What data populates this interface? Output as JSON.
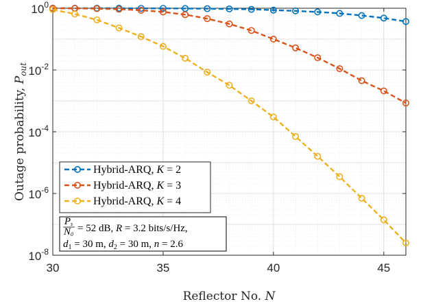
{
  "chart_data": {
    "type": "line",
    "xlabel": "Reflector No. N",
    "ylabel": "Outage probability, P_out",
    "x": [
      30,
      31,
      32,
      33,
      34,
      35,
      36,
      37,
      38,
      39,
      40,
      41,
      42,
      43,
      44,
      45,
      46
    ],
    "xlim": [
      30,
      46
    ],
    "ylim": [
      1e-08,
      1
    ],
    "yscale": "log",
    "xticks": [
      "30",
      "35",
      "40",
      "45"
    ],
    "yticks": [
      "10^0",
      "10^-2",
      "10^-4",
      "10^-6",
      "10^-8"
    ],
    "grid": true,
    "series": [
      {
        "name": "Hybrid-ARQ, K = 2",
        "color": "#0072BD",
        "values": [
          1.0,
          1.0,
          1.0,
          1.0,
          0.99,
          0.99,
          0.98,
          0.97,
          0.95,
          0.92,
          0.87,
          0.82,
          0.76,
          0.68,
          0.58,
          0.48,
          0.37
        ]
      },
      {
        "name": "Hybrid-ARQ, K = 3",
        "color": "#D95319",
        "values": [
          1.0,
          0.99,
          0.97,
          0.93,
          0.86,
          0.76,
          0.62,
          0.46,
          0.31,
          0.19,
          0.1,
          0.052,
          0.025,
          0.011,
          0.0045,
          0.0021,
          0.00085
        ]
      },
      {
        "name": "Hybrid-ARQ, K = 4",
        "color": "#EDB120",
        "values": [
          0.9,
          0.65,
          0.42,
          0.23,
          0.12,
          0.058,
          0.024,
          0.0085,
          0.0032,
          0.001,
          0.0003,
          7e-05,
          1.6e-05,
          3.5e-06,
          7e-07,
          1.4e-07,
          2.5e-08
        ]
      }
    ],
    "legend": {
      "placement": "lower-left",
      "entries": [
        "Hybrid-ARQ, K = 2",
        "Hybrid-ARQ, K = 3",
        "Hybrid-ARQ, K = 4"
      ]
    },
    "annotation": {
      "line1": "= 52 dB, R = 3.2 bits/s/Hz,",
      "frac_num": "P_s",
      "frac_den": "N_0",
      "line2": "d_1 = 30 m, d_2 = 30 m, n = 2.6"
    }
  }
}
